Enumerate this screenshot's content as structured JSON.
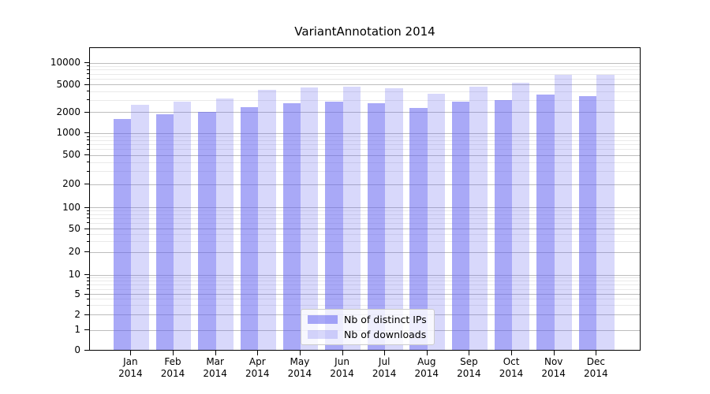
{
  "chart_data": {
    "type": "bar",
    "title": "VariantAnnotation 2014",
    "year": "2014",
    "categories": [
      "Jan",
      "Feb",
      "Mar",
      "Apr",
      "May",
      "Jun",
      "Jul",
      "Aug",
      "Sep",
      "Oct",
      "Nov",
      "Dec"
    ],
    "series": [
      {
        "name": "Nb of distinct IPs",
        "values": [
          1550,
          1800,
          1950,
          2300,
          2600,
          2750,
          2650,
          2250,
          2800,
          2900,
          3500,
          3300
        ],
        "color_rendered": "#a9a9f7",
        "rgba": "rgba(99,99,240,0.55)"
      },
      {
        "name": "Nb of downloads",
        "values": [
          2500,
          2800,
          3100,
          4100,
          4400,
          4600,
          4300,
          3600,
          4600,
          5200,
          6600,
          6600
        ],
        "color_rendered": "#d8d8fb",
        "rgba": "rgba(99,99,240,0.25)"
      }
    ],
    "yticks": [
      0,
      1,
      2,
      5,
      10,
      20,
      50,
      100,
      200,
      500,
      1000,
      2000,
      5000,
      10000
    ],
    "scale": "symlog",
    "ylim": [
      0,
      15000
    ],
    "grid": true,
    "legend_position": "lower center",
    "xlabel": "",
    "ylabel": ""
  }
}
